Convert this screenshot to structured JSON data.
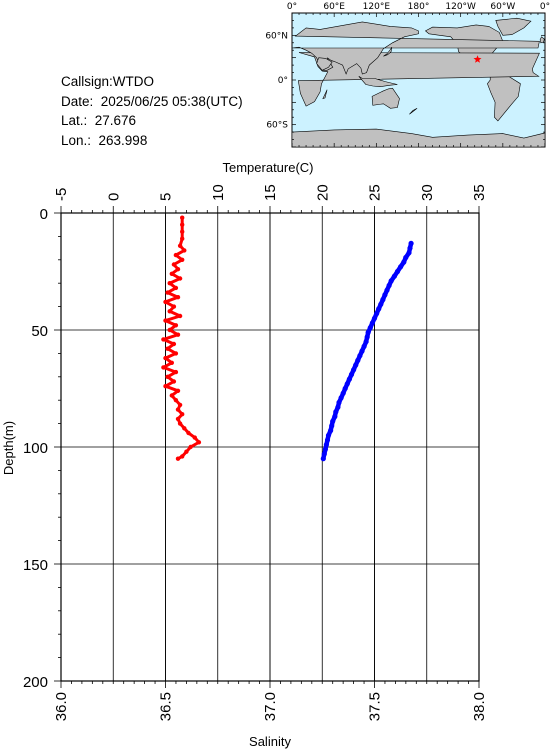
{
  "info": {
    "callsign": "Callsign:WTDO",
    "date": "Date:  2025/06/25 05:38(UTC)",
    "lat": "Lat.:  27.676",
    "lon": "Lon.:  263.998"
  },
  "map": {
    "x_tick_labels": [
      "0°",
      "60°E",
      "120°E",
      "180°",
      "120°W",
      "60°W",
      "0°"
    ],
    "y_tick_labels": [
      "60°N",
      "0°",
      "60°S"
    ],
    "ocean_color": "#ccf2ff",
    "land_color": "#c0c0c0",
    "station_marker_color": "#ff0000",
    "station": {
      "lon": 263.998,
      "lat": 27.676
    }
  },
  "chart_data": {
    "type": "line",
    "x_top_label": "Temperature(C)",
    "x_bottom_label": "Salinity",
    "ylabel": "Depth(m)",
    "temperature_range": [
      -5,
      35
    ],
    "temperature_ticks": [
      -5,
      0,
      5,
      10,
      15,
      20,
      25,
      30,
      35
    ],
    "salinity_range": [
      36.0,
      38.0
    ],
    "salinity_ticks": [
      "36.0",
      "36.5",
      "37.0",
      "37.5",
      "38.0"
    ],
    "depth_range": [
      0,
      200
    ],
    "depth_ticks": [
      0,
      50,
      100,
      150,
      200
    ],
    "grid": true,
    "series": [
      {
        "variable": "temperature",
        "color": "#0000ff",
        "depth": [
          13,
          15,
          17,
          19,
          21,
          23,
          25,
          27,
          29,
          31,
          33,
          35,
          37,
          39,
          41,
          43,
          45,
          47,
          49,
          51,
          53,
          55,
          57,
          59,
          61,
          63,
          65,
          67,
          69,
          71,
          73,
          75,
          77,
          79,
          81,
          83,
          85,
          87,
          89,
          91,
          93,
          95,
          97,
          99,
          101,
          103,
          105
        ],
        "values": [
          28.5,
          28.4,
          28.3,
          28.0,
          27.8,
          27.5,
          27.2,
          26.9,
          26.6,
          26.4,
          26.2,
          26.0,
          25.8,
          25.6,
          25.4,
          25.2,
          25.0,
          24.8,
          24.6,
          24.4,
          24.3,
          24.2,
          24.0,
          23.8,
          23.6,
          23.4,
          23.2,
          23.0,
          22.8,
          22.6,
          22.4,
          22.2,
          22.0,
          21.8,
          21.6,
          21.5,
          21.3,
          21.2,
          21.0,
          20.9,
          20.8,
          20.6,
          20.5,
          20.4,
          20.3,
          20.2,
          20.1
        ]
      },
      {
        "variable": "salinity",
        "color": "#ff0000",
        "depth": [
          2,
          5,
          8,
          11,
          14,
          16,
          18,
          20,
          22,
          24,
          26,
          28,
          30,
          32,
          34,
          36,
          38,
          40,
          42,
          44,
          46,
          48,
          50,
          52,
          54,
          56,
          58,
          60,
          62,
          64,
          66,
          68,
          70,
          72,
          74,
          76,
          78,
          80,
          82,
          84,
          86,
          88,
          90,
          92,
          94,
          96,
          98,
          100,
          102,
          104,
          105
        ],
        "values": [
          36.58,
          36.58,
          36.58,
          36.58,
          36.57,
          36.59,
          36.55,
          36.58,
          36.54,
          36.56,
          36.53,
          36.57,
          36.52,
          36.55,
          36.51,
          36.56,
          36.5,
          36.54,
          36.52,
          36.57,
          36.5,
          36.55,
          36.52,
          36.56,
          36.49,
          36.54,
          36.51,
          36.55,
          36.5,
          36.53,
          36.49,
          36.55,
          36.51,
          36.54,
          36.5,
          36.56,
          36.53,
          36.55,
          36.57,
          36.56,
          36.58,
          36.56,
          36.57,
          36.59,
          36.61,
          36.64,
          36.66,
          36.62,
          36.6,
          36.58,
          36.56
        ]
      }
    ]
  }
}
